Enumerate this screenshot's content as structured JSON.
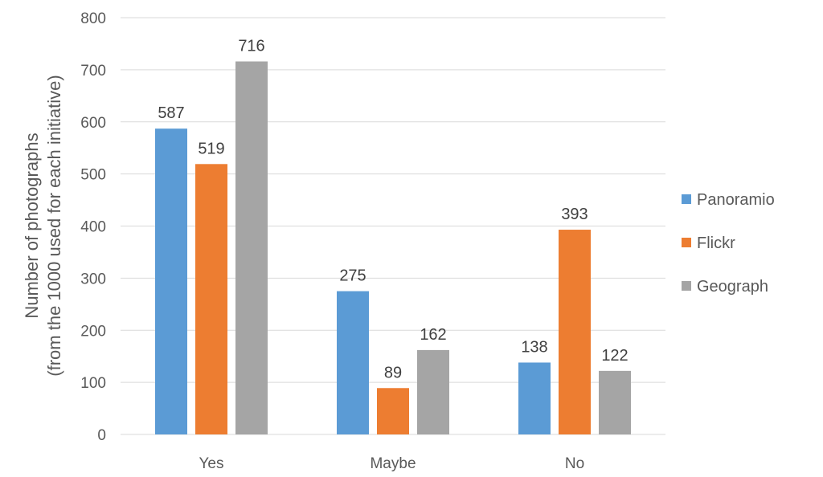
{
  "chart_data": {
    "type": "bar",
    "categories": [
      "Yes",
      "Maybe",
      "No"
    ],
    "series": [
      {
        "name": "Panoramio",
        "values": [
          587,
          275,
          138
        ],
        "color": "#5B9BD5"
      },
      {
        "name": "Flickr",
        "values": [
          519,
          89,
          393
        ],
        "color": "#ED7D31"
      },
      {
        "name": "Geograph",
        "values": [
          716,
          162,
          122
        ],
        "color": "#A5A5A5"
      }
    ],
    "ylabel_line1": "Number of photographs",
    "ylabel_line2": "(from the 1000 used for each initiative)",
    "ylim": [
      0,
      800
    ],
    "yticks": [
      0,
      100,
      200,
      300,
      400,
      500,
      600,
      700,
      800
    ],
    "grid": true,
    "legend_position": "right",
    "gridline_color": "#D9D9D9"
  }
}
